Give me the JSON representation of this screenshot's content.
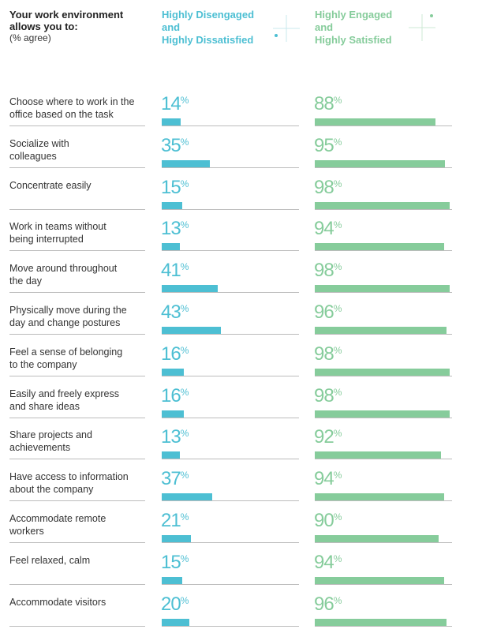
{
  "header": {
    "title": [
      "Your work environment",
      "allows you to:"
    ],
    "subtitle": "(% agree)",
    "col_a": [
      "Highly Disengaged",
      "and",
      "Highly Dissatisfied"
    ],
    "col_b": [
      "Highly Engaged",
      "and",
      "Highly Satisfied"
    ]
  },
  "colors": {
    "disengaged": "#4dbfd3",
    "engaged": "#86cc9b",
    "rule": "#bcbcbc"
  },
  "chart_data": {
    "type": "bar",
    "orientation": "horizontal",
    "unit": "%",
    "series": [
      {
        "name": "Highly Disengaged and Highly Dissatisfied",
        "values": [
          14,
          35,
          15,
          13,
          41,
          43,
          16,
          16,
          13,
          37,
          21,
          15,
          20
        ]
      },
      {
        "name": "Highly Engaged and Highly Satisfied",
        "values": [
          88,
          95,
          98,
          94,
          98,
          96,
          98,
          98,
          92,
          94,
          90,
          94,
          96
        ]
      }
    ],
    "categories": [
      [
        "Choose where to work in the",
        "office based on the task"
      ],
      [
        "Socialize with",
        "colleagues"
      ],
      [
        "Concentrate easily"
      ],
      [
        "Work in teams without",
        "being interrupted"
      ],
      [
        "Move around throughout",
        "the day"
      ],
      [
        "Physically move during the",
        "day and change postures"
      ],
      [
        "Feel a sense of belonging",
        "to the company"
      ],
      [
        "Easily and freely express",
        "and share ideas"
      ],
      [
        "Share projects and",
        "achievements"
      ],
      [
        "Have access to information",
        "about the company"
      ],
      [
        "Accommodate remote",
        "workers"
      ],
      [
        "Feel relaxed, calm"
      ],
      [
        "Accommodate visitors"
      ]
    ]
  }
}
